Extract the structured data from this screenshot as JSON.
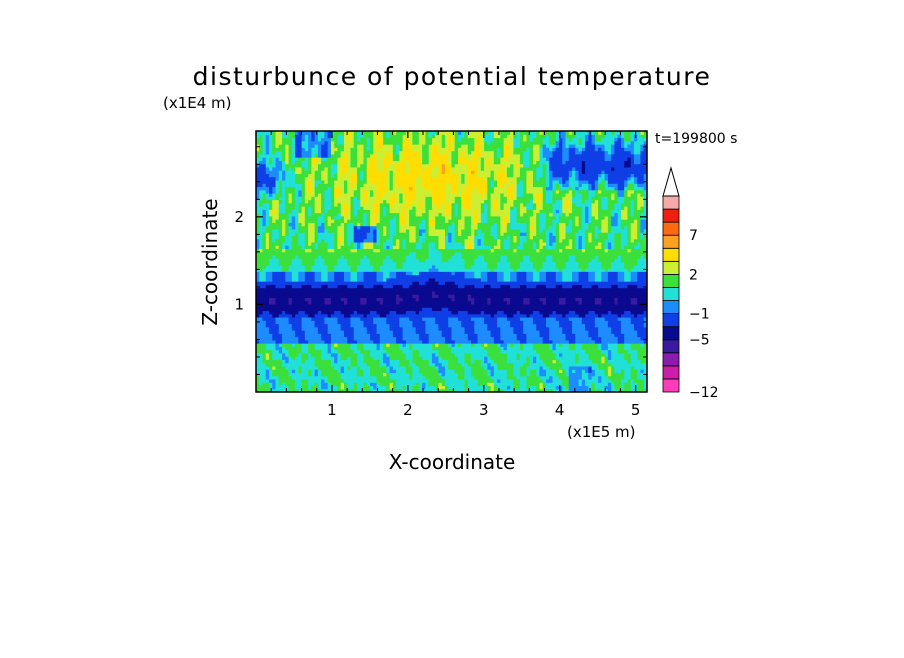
{
  "chart_data": {
    "type": "heatmap",
    "title": "disturbunce of potential temperature",
    "xlabel": "X-coordinate",
    "ylabel": "Z-coordinate",
    "x_unit": "(x1E5 m)",
    "y_unit": "(x1E4 m)",
    "time_label": "t=199800 s",
    "xlim": [
      0,
      5.15
    ],
    "ylim": [
      0,
      2.98
    ],
    "x_ticks": [
      1,
      2,
      3,
      4,
      5
    ],
    "y_ticks": [
      1,
      2
    ],
    "colorbar": {
      "levels": [
        -12,
        -11,
        -9,
        -7,
        -5,
        -3,
        -1,
        0,
        1,
        2,
        3,
        5,
        7,
        9,
        11
      ],
      "tick_labels": [
        "7",
        "2",
        "−1",
        "−5",
        "−12"
      ],
      "tick_values": [
        7,
        2,
        -1,
        -5,
        -12
      ],
      "colors": [
        "#ff3dbb",
        "#cc1ca8",
        "#8a1db0",
        "#3a1aa0",
        "#0a0a90",
        "#0f3fe6",
        "#1c8cff",
        "#20e0d8",
        "#3ce03c",
        "#ccee33",
        "#ffdd00",
        "#ffa020",
        "#ff6a10",
        "#ee2010",
        "#f6aaa8"
      ],
      "extend": "max"
    },
    "grid": false,
    "colormap_band_description": "layered field"
  }
}
